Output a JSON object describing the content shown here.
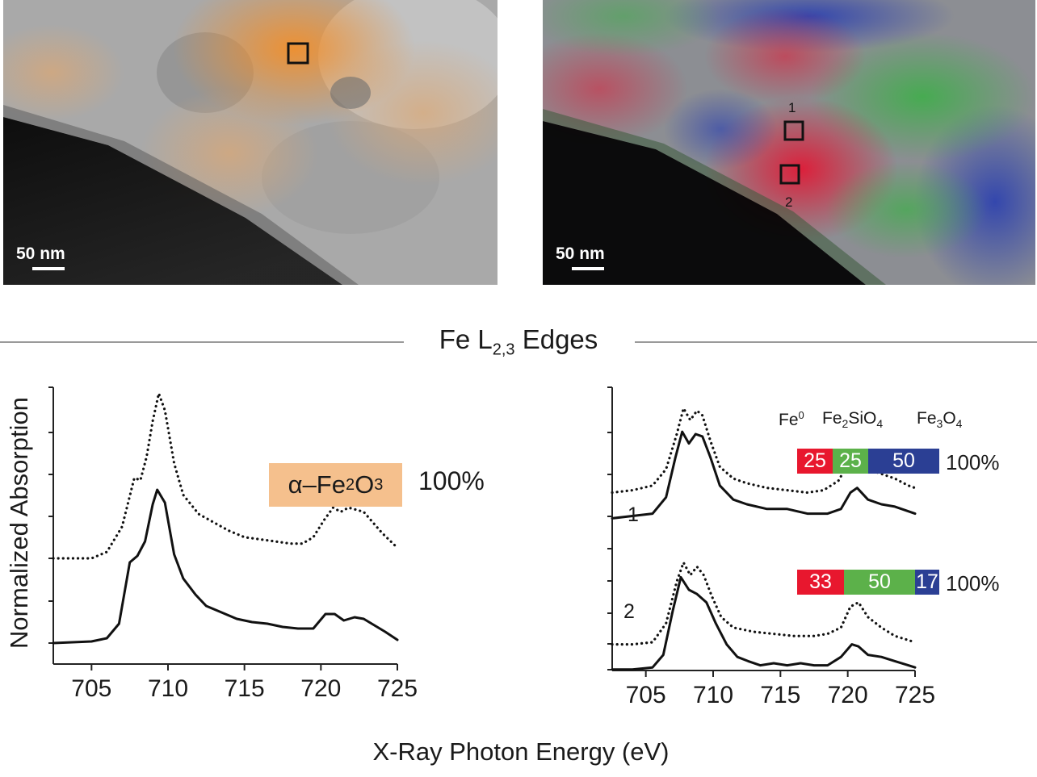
{
  "figure": {
    "left_image": {
      "scale_label": "50 nm"
    },
    "right_image": {
      "scale_label": "50 nm",
      "box_labels": [
        "1",
        "2"
      ]
    },
    "edges_title": "Fe L",
    "edges_sub": "2,3",
    "edges_suffix": " Edges",
    "y_axis_label": "Normalized Absorption",
    "x_axis_label": "X-Ray Photon Energy (eV)",
    "phase_tag": {
      "alpha": "α–Fe",
      "sub": "2",
      "rest": "O",
      "sub2": "3"
    },
    "phase_pct": "100%",
    "components": [
      {
        "main": "Fe",
        "sup": "0"
      },
      {
        "main": "Fe",
        "sub": "2",
        "mid": "SiO",
        "sub2": "4"
      },
      {
        "main": "Fe",
        "sub": "3",
        "mid": "O",
        "sub2": "4"
      }
    ],
    "rows": [
      {
        "label": "1",
        "values": [
          "25",
          "25",
          "50"
        ],
        "total": "100%"
      },
      {
        "label": "2",
        "values": [
          "33",
          "50",
          "17"
        ],
        "total": "100%"
      }
    ],
    "colors": {
      "fe0": "#e8172e",
      "fayalite": "#5cb14a",
      "magnetite": "#2b3f94",
      "hematite": "#f5c08d"
    }
  },
  "chart_data": [
    {
      "type": "line",
      "xlabel": "X-Ray Photon Energy (eV)",
      "ylabel": "Normalized Absorption",
      "xlim": [
        702.5,
        725
      ],
      "x_ticks": [
        705,
        710,
        715,
        720,
        725
      ],
      "series": [
        {
          "style": "dotted",
          "x": [
            702.5,
            705,
            706,
            707,
            707.8,
            708.2,
            708.6,
            709.0,
            709.4,
            709.8,
            710.4,
            711,
            712,
            713,
            714,
            715,
            716,
            717,
            718,
            718.8,
            719.5,
            720.2,
            720.8,
            721.3,
            721.8,
            722.3,
            722.8,
            723.4,
            724,
            725
          ],
          "y": [
            0.0,
            0.0,
            0.03,
            0.15,
            0.38,
            0.37,
            0.48,
            0.65,
            0.78,
            0.7,
            0.45,
            0.3,
            0.21,
            0.17,
            0.13,
            0.1,
            0.09,
            0.08,
            0.07,
            0.07,
            0.1,
            0.18,
            0.24,
            0.22,
            0.24,
            0.23,
            0.22,
            0.17,
            0.12,
            0.05
          ]
        },
        {
          "style": "solid",
          "x": [
            702.5,
            705,
            706,
            706.8,
            707.5,
            708.0,
            708.5,
            709.0,
            709.3,
            709.8,
            710.4,
            711,
            711.8,
            712.5,
            713.5,
            714.5,
            715.5,
            716.5,
            717.5,
            718.5,
            719.5,
            720.3,
            720.9,
            721.5,
            722.2,
            722.8,
            723.5,
            724.2,
            725
          ],
          "y": [
            0.0,
            0.01,
            0.03,
            0.12,
            0.5,
            0.54,
            0.63,
            0.86,
            0.95,
            0.87,
            0.55,
            0.4,
            0.3,
            0.23,
            0.19,
            0.15,
            0.13,
            0.12,
            0.1,
            0.09,
            0.09,
            0.18,
            0.18,
            0.14,
            0.16,
            0.15,
            0.11,
            0.07,
            0.02
          ]
        }
      ]
    },
    {
      "type": "line",
      "xlabel": "X-Ray Photon Energy (eV)",
      "ylabel": "Normalized Absorption",
      "xlim": [
        702.5,
        725
      ],
      "x_ticks": [
        705,
        710,
        715,
        720,
        725
      ],
      "series": [
        {
          "name": "1",
          "style": "dotted",
          "x": [
            702.5,
            704,
            705.5,
            706.5,
            707.3,
            707.8,
            708.3,
            708.8,
            709.2,
            709.8,
            710.5,
            711.5,
            712.5,
            714,
            715.5,
            717,
            718.2,
            719.3,
            720.2,
            720.8,
            721.5,
            722.5,
            723.5,
            724.5,
            725
          ],
          "y": [
            0.55,
            0.56,
            0.58,
            0.65,
            0.8,
            0.91,
            0.86,
            0.9,
            0.88,
            0.77,
            0.66,
            0.61,
            0.59,
            0.57,
            0.56,
            0.55,
            0.56,
            0.6,
            0.69,
            0.68,
            0.65,
            0.63,
            0.61,
            0.58,
            0.57
          ]
        },
        {
          "name": "1",
          "style": "solid",
          "x": [
            702.5,
            704,
            705.5,
            706.5,
            707.2,
            707.7,
            708.2,
            708.7,
            709.2,
            709.8,
            710.5,
            711.5,
            712.5,
            714,
            715.5,
            717,
            718.5,
            719.5,
            720.2,
            720.7,
            721.5,
            722.5,
            723.5,
            724.5,
            725
          ],
          "y": [
            0.44,
            0.45,
            0.46,
            0.53,
            0.7,
            0.81,
            0.76,
            0.8,
            0.79,
            0.7,
            0.58,
            0.52,
            0.5,
            0.48,
            0.48,
            0.46,
            0.46,
            0.48,
            0.55,
            0.57,
            0.52,
            0.5,
            0.49,
            0.47,
            0.46
          ]
        },
        {
          "name": "2",
          "style": "dotted",
          "x": [
            702.5,
            704,
            705.5,
            706.5,
            707.3,
            707.8,
            708.3,
            708.8,
            709.3,
            709.9,
            710.6,
            711.5,
            713,
            714.5,
            716,
            717.5,
            718.5,
            719.5,
            720.2,
            720.8,
            721.5,
            722.5,
            723.5,
            724.5,
            725
          ],
          "y": [
            0.14,
            0.14,
            0.15,
            0.24,
            0.44,
            0.53,
            0.47,
            0.51,
            0.47,
            0.37,
            0.27,
            0.22,
            0.2,
            0.19,
            0.18,
            0.18,
            0.19,
            0.22,
            0.32,
            0.34,
            0.27,
            0.22,
            0.18,
            0.16,
            0.15
          ]
        },
        {
          "name": "2",
          "style": "solid",
          "x": [
            702.5,
            704,
            705.5,
            706.3,
            707.0,
            707.6,
            708.2,
            708.8,
            709.5,
            710.2,
            711.0,
            711.8,
            712.6,
            713.5,
            714.5,
            715.5,
            716.5,
            717.5,
            718.5,
            719.5,
            720.3,
            720.8,
            721.5,
            722.5,
            723.5,
            724.5,
            725
          ],
          "y": [
            0.02,
            0.02,
            0.03,
            0.09,
            0.3,
            0.46,
            0.4,
            0.38,
            0.34,
            0.24,
            0.14,
            0.08,
            0.06,
            0.04,
            0.05,
            0.04,
            0.05,
            0.04,
            0.04,
            0.08,
            0.14,
            0.13,
            0.09,
            0.08,
            0.06,
            0.04,
            0.03
          ]
        }
      ]
    }
  ]
}
